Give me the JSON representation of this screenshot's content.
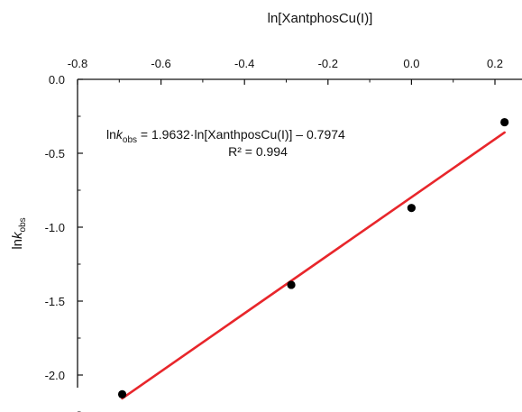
{
  "chart_data": {
    "type": "scatter",
    "title": "",
    "xlabel": "ln[XantphosCu(I)]",
    "ylabel": {
      "base": "ln",
      "italic": "k",
      "sub": "obs"
    },
    "xlim": [
      -0.85,
      0.25
    ],
    "ylim": [
      -2.25,
      0.0
    ],
    "x_position": "top",
    "grid": false,
    "x_ticks": [
      -0.8,
      -0.6,
      -0.4,
      -0.2,
      0.0,
      0.2
    ],
    "x_tick_labels": [
      "-0.8",
      "-0.6",
      "-0.4",
      "-0.2",
      "0.0",
      "0.2"
    ],
    "y_ticks": [
      0.0,
      -0.5,
      -1.0,
      -1.5,
      -2.0
    ],
    "y_tick_labels": [
      "0.0",
      "-0.5",
      "-1.0",
      "-1.5",
      "-2.0"
    ],
    "series": [
      {
        "kind": "points",
        "color": "#000000",
        "x": [
          -0.693,
          -0.288,
          0.0,
          0.223
        ],
        "y": [
          -2.13,
          -1.39,
          -0.87,
          -0.29
        ]
      },
      {
        "kind": "fit-line",
        "color": "#e8262b",
        "slope": 1.9632,
        "intercept": -0.7974,
        "x_range": [
          -0.693,
          0.223
        ]
      }
    ],
    "annotations": {
      "equation": {
        "pre": "ln",
        "italic": "k",
        "sub": "obs",
        "post": " = 1.9632·ln[XanthposCu(I)] – 0.7974"
      },
      "r2": "R² = 0.994"
    }
  }
}
